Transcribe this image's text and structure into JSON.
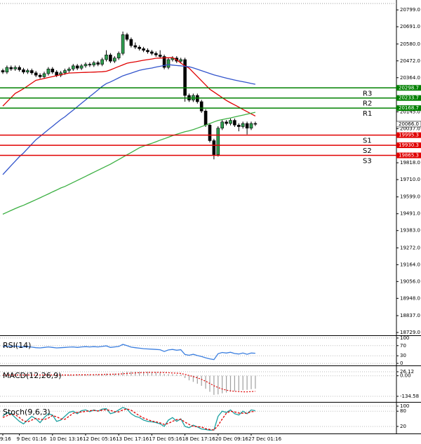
{
  "chart_data": [
    {
      "type": "candlestick",
      "categories": [
        "9:16",
        null,
        null,
        null,
        "9 Dec 01:16",
        null,
        null,
        null,
        null,
        null,
        null,
        null,
        "10 Dec 13:16",
        null,
        null,
        null,
        null,
        null,
        null,
        null,
        "12 Dec 05:16",
        null,
        null,
        null,
        null,
        null,
        null,
        null,
        "13 Dec 17:16",
        null,
        null,
        null,
        null,
        null,
        null,
        null,
        "17 Dec 05:16",
        null,
        null,
        null,
        null,
        null,
        null,
        null,
        "18 Dec 17:16",
        null,
        null,
        null,
        null,
        null,
        null,
        null,
        "20 Dec 09:16",
        null,
        null,
        null,
        null,
        null,
        null,
        null,
        "27 Dec 01:16",
        null
      ],
      "open": [
        20410,
        20400,
        20430,
        20420,
        20430,
        20415,
        20400,
        20410,
        20395,
        20380,
        20370,
        20390,
        20420,
        20400,
        20380,
        20395,
        20410,
        20420,
        20440,
        20425,
        20440,
        20450,
        20445,
        20460,
        20450,
        20480,
        20510,
        20470,
        20490,
        20520,
        20640,
        20610,
        20570,
        20560,
        20550,
        20540,
        20530,
        20520,
        20510,
        20500,
        20430,
        20480,
        20490,
        20470,
        20480,
        20250,
        20220,
        20250,
        20210,
        20150,
        20060,
        19960,
        19870,
        20040,
        20080,
        20070,
        20090,
        20060,
        20050,
        20070,
        20040,
        20070
      ],
      "high": [
        20422,
        20442,
        20442,
        20442,
        20442,
        20427,
        20422,
        20422,
        20407,
        20392,
        20402,
        20432,
        20432,
        20412,
        20407,
        20422,
        20432,
        20452,
        20452,
        20452,
        20462,
        20462,
        20472,
        20472,
        20492,
        20540,
        20522,
        20502,
        20532,
        20660,
        20652,
        20622,
        20590,
        20572,
        20562,
        20552,
        20542,
        20532,
        20540,
        20512,
        20492,
        20502,
        20502,
        20492,
        20492,
        20262,
        20262,
        20262,
        20222,
        20162,
        20072,
        19972,
        20052,
        20092,
        20092,
        20102,
        20102,
        20072,
        20082,
        20082,
        20082,
        20082
      ],
      "low": [
        20388,
        20388,
        20408,
        20408,
        20403,
        20388,
        20388,
        20383,
        20368,
        20358,
        20358,
        20378,
        20388,
        20368,
        20368,
        20383,
        20398,
        20408,
        20413,
        20413,
        20428,
        20433,
        20433,
        20438,
        20438,
        20468,
        20458,
        20458,
        20478,
        20508,
        20598,
        20558,
        20548,
        20538,
        20528,
        20518,
        20508,
        20498,
        20488,
        20418,
        20418,
        20468,
        20458,
        20458,
        20210,
        20208,
        20208,
        20198,
        20138,
        20048,
        19948,
        19840,
        19858,
        20028,
        20058,
        20058,
        20048,
        20020,
        20038,
        20000,
        20028,
        20054
      ],
      "close": [
        20400,
        20430,
        20420,
        20430,
        20415,
        20400,
        20410,
        20395,
        20380,
        20370,
        20390,
        20420,
        20400,
        20380,
        20395,
        20410,
        20420,
        20440,
        20425,
        20440,
        20450,
        20445,
        20460,
        20450,
        20480,
        20510,
        20470,
        20490,
        20520,
        20640,
        20610,
        20570,
        20560,
        20550,
        20540,
        20530,
        20520,
        20510,
        20500,
        20430,
        20480,
        20490,
        20470,
        20480,
        20250,
        20220,
        20250,
        20210,
        20150,
        20060,
        19960,
        19870,
        20040,
        20080,
        20070,
        20090,
        20060,
        20050,
        20070,
        20040,
        20070,
        20066
      ],
      "up_color": "#2e9e4f",
      "down_color": "#000000",
      "series": [
        {
          "color": "#e00000",
          "values": [
            20182,
            20209,
            20236,
            20263,
            20278,
            20293,
            20311,
            20329,
            20347,
            20353,
            20359,
            20365,
            20371,
            20377,
            20383,
            20388,
            20394,
            20395,
            20396,
            20397,
            20398,
            20399,
            20400,
            20401,
            20402,
            20405,
            20414,
            20425,
            20436,
            20446,
            20457,
            20462,
            20466,
            20471,
            20476,
            20480,
            20484,
            20489,
            20490,
            20491,
            20492,
            20493,
            20479,
            20458,
            20440,
            20425,
            20398,
            20371,
            20344,
            20317,
            20290,
            20272,
            20254,
            20236,
            20218,
            20203,
            20189,
            20175,
            20160,
            20146,
            20132,
            20118
          ]
        },
        {
          "color": "#3355cc",
          "values": [
            19742,
            19771,
            19800,
            19828,
            19857,
            19881,
            19909,
            19938,
            19966,
            19987,
            20009,
            20031,
            20052,
            20074,
            20095,
            20113,
            20135,
            20156,
            20178,
            20200,
            20221,
            20243,
            20264,
            20286,
            20308,
            20326,
            20337,
            20350,
            20363,
            20376,
            20385,
            20393,
            20402,
            20411,
            20417,
            20422,
            20426,
            20432,
            20437,
            20443,
            20448,
            20445,
            20442,
            20440,
            20437,
            20434,
            20427,
            20418,
            20409,
            20400,
            20391,
            20382,
            20375,
            20368,
            20361,
            20355,
            20349,
            20343,
            20338,
            20333,
            20327,
            20322
          ]
        },
        {
          "color": "#3cb043",
          "values": [
            19488,
            19500,
            19512,
            19524,
            19535,
            19545,
            19557,
            19569,
            19581,
            19593,
            19606,
            19618,
            19631,
            19643,
            19656,
            19666,
            19679,
            19692,
            19705,
            19718,
            19731,
            19744,
            19757,
            19770,
            19783,
            19796,
            19809,
            19824,
            19839,
            19854,
            19869,
            19884,
            19899,
            19914,
            19925,
            19935,
            19943,
            19953,
            19963,
            19972,
            19982,
            19992,
            20001,
            20009,
            20017,
            20023,
            20031,
            20040,
            20050,
            20060,
            20070,
            20080,
            20089,
            20095,
            20101,
            20106,
            20112,
            20118,
            20124,
            20130,
            20136,
            20142
          ]
        }
      ],
      "levels": [
        {
          "name": "R3",
          "value": 20298.7,
          "color": "#008000"
        },
        {
          "name": "R2",
          "value": 20233.7,
          "color": "#008000"
        },
        {
          "name": "R1",
          "value": 20168.7,
          "color": "#008000"
        },
        {
          "name": "S1",
          "value": 19995.3,
          "color": "#e00000"
        },
        {
          "name": "S2",
          "value": 19930.3,
          "color": "#e00000"
        },
        {
          "name": "S3",
          "value": 19865.3,
          "color": "#e00000"
        }
      ],
      "last": {
        "value": 20066,
        "label": "20066.0"
      },
      "ylim": [
        18711,
        20840
      ],
      "yticks": [
        {
          "value": 20799,
          "label": "20799.0"
        },
        {
          "value": 20691,
          "label": "20691.0"
        },
        {
          "value": 20580,
          "label": "20580.0"
        },
        {
          "value": 20472,
          "label": "20472.0"
        },
        {
          "value": 20364,
          "label": "20364.0"
        },
        {
          "value": 20145,
          "label": "20145.0"
        },
        {
          "value": 20037,
          "label": "20037.0"
        },
        {
          "value": 19818,
          "label": "19818.0"
        },
        {
          "value": 19710,
          "label": "19710.0"
        },
        {
          "value": 19599,
          "label": "19599.0"
        },
        {
          "value": 19491,
          "label": "19491.0"
        },
        {
          "value": 19383,
          "label": "19383.0"
        },
        {
          "value": 19272,
          "label": "19272.0"
        },
        {
          "value": 19164,
          "label": "19164.0"
        },
        {
          "value": 19056,
          "label": "19056.0"
        },
        {
          "value": 18948,
          "label": "18948.0"
        },
        {
          "value": 18837,
          "label": "18837.0"
        },
        {
          "value": 18729,
          "label": "18729.0"
        }
      ]
    },
    {
      "type": "line",
      "title": "RSI(14)",
      "series": [
        {
          "color": "#3b7fe0",
          "values": [
            66,
            68,
            67,
            68,
            66,
            65,
            66,
            64,
            62,
            61,
            63,
            65,
            63,
            61,
            62,
            63,
            64,
            65,
            63,
            65,
            66,
            65,
            66,
            65,
            67,
            69,
            63,
            65,
            67,
            75,
            70,
            64,
            62,
            60,
            58,
            57,
            56,
            55,
            54,
            47,
            53,
            55,
            52,
            54,
            35,
            32,
            36,
            31,
            27,
            22,
            18,
            15,
            38,
            43,
            41,
            44,
            39,
            37,
            41,
            36,
            41,
            40
          ]
        }
      ],
      "ylim": [
        -5.3,
        105.3
      ],
      "yticks": [
        0,
        30,
        70,
        100
      ]
    },
    {
      "type": "macd",
      "title": "MACD(12,26,9)",
      "values": [
        5,
        6,
        6,
        7,
        7,
        6,
        6,
        5,
        5,
        4,
        4,
        5,
        5,
        4,
        4,
        5,
        6,
        7,
        7,
        8,
        9,
        9,
        10,
        10,
        12,
        14,
        13,
        14,
        16,
        24,
        27,
        28,
        28,
        27,
        26,
        25,
        23,
        21,
        19,
        12,
        11,
        10,
        8,
        8,
        -15,
        -30,
        -40,
        -52,
        -66,
        -85,
        -105,
        -125,
        -122,
        -115,
        -110,
        -104,
        -101,
        -98,
        -94,
        -92,
        -88,
        -85
      ],
      "signal": [
        4,
        4,
        5,
        5,
        5,
        5,
        5,
        5,
        5,
        5,
        5,
        5,
        5,
        5,
        5,
        5,
        5,
        5,
        6,
        6,
        6,
        7,
        7,
        8,
        8,
        9,
        10,
        10,
        11,
        13,
        15,
        17,
        19,
        20,
        21,
        22,
        22,
        22,
        22,
        21,
        20,
        18,
        17,
        15,
        9,
        2,
        -5,
        -14,
        -24,
        -36,
        -50,
        -65,
        -77,
        -87,
        -94,
        -99,
        -102,
        -104,
        -105,
        -105,
        -104,
        -102
      ],
      "color": "#a0a0a0",
      "signal_color": "#e00000",
      "ylim": [
        -166.7,
        58.3
      ],
      "yticks": [
        26.12,
        {
          "value": 0,
          "label": "0.00"
        },
        -134.58
      ]
    },
    {
      "type": "line",
      "title": "Stoch(9,6,3)",
      "series": [
        {
          "color": "#1aa0a0",
          "values": [
            60,
            75,
            70,
            55,
            40,
            30,
            45,
            60,
            50,
            35,
            55,
            70,
            65,
            40,
            45,
            60,
            75,
            80,
            70,
            82,
            85,
            78,
            85,
            80,
            88,
            90,
            70,
            75,
            85,
            95,
            88,
            70,
            60,
            55,
            45,
            40,
            38,
            35,
            30,
            20,
            45,
            55,
            40,
            50,
            20,
            15,
            25,
            18,
            10,
            8,
            5,
            6,
            60,
            80,
            75,
            85,
            70,
            65,
            80,
            70,
            85,
            82
          ]
        },
        {
          "color": "#e00000",
          "style": "dashed",
          "values": [
            55,
            62,
            68,
            67,
            55,
            42,
            38,
            45,
            52,
            48,
            47,
            53,
            63,
            58,
            50,
            48,
            60,
            72,
            75,
            77,
            79,
            82,
            83,
            81,
            84,
            86,
            83,
            78,
            77,
            85,
            89,
            84,
            73,
            62,
            53,
            47,
            41,
            38,
            34,
            28,
            32,
            40,
            47,
            48,
            37,
            28,
            20,
            19,
            18,
            11,
            8,
            6,
            24,
            49,
            72,
            80,
            77,
            73,
            72,
            72,
            78,
            79
          ]
        }
      ],
      "ylim": [
        -5,
        111
      ],
      "yticks": [
        20,
        80,
        100
      ]
    }
  ]
}
